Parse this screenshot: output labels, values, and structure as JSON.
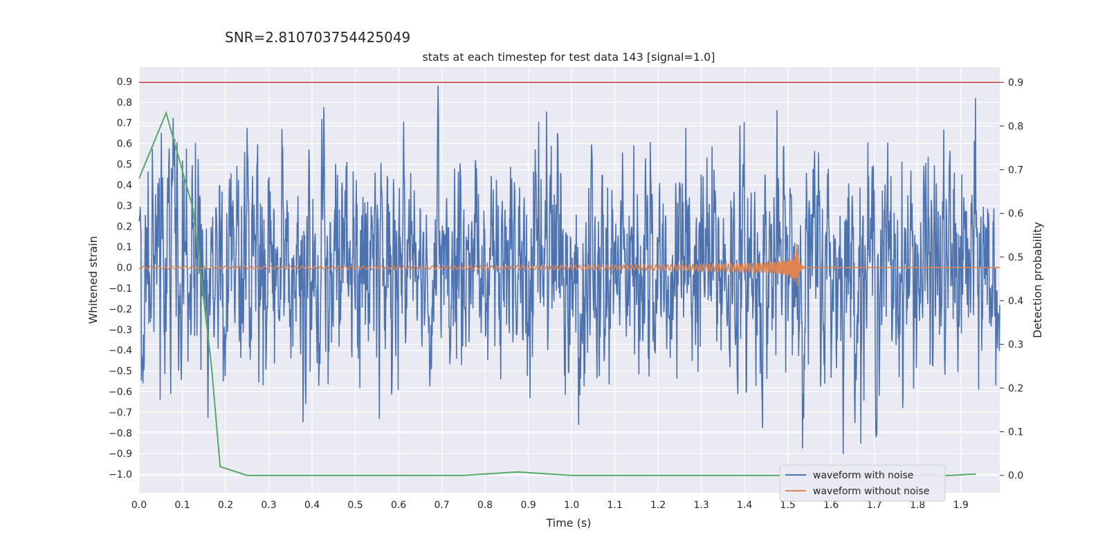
{
  "suptitle": "SNR=2.810703754425049",
  "chart_data": {
    "type": "line",
    "title": "stats at each timestep for test data 143 [signal=1.0]",
    "xlabel": "Time (s)",
    "ylabel": "Whitened strain",
    "y2label": "Detection probability",
    "xlim": [
      0.0,
      1.99
    ],
    "ylim": [
      -1.09,
      0.97
    ],
    "y2lim": [
      -0.04,
      0.935
    ],
    "x_ticks": [
      "0.0",
      "0.1",
      "0.2",
      "0.3",
      "0.4",
      "0.5",
      "0.6",
      "0.7",
      "0.8",
      "0.9",
      "1.0",
      "1.1",
      "1.2",
      "1.3",
      "1.4",
      "1.5",
      "1.6",
      "1.7",
      "1.8",
      "1.9"
    ],
    "y_ticks": [
      "0.9",
      "0.8",
      "0.7",
      "0.6",
      "0.5",
      "0.4",
      "0.3",
      "0.2",
      "0.1",
      "0.0",
      "−0.1",
      "−0.2",
      "−0.3",
      "−0.4",
      "−0.5",
      "−0.6",
      "−0.7",
      "−0.8",
      "−0.9",
      "−1.0"
    ],
    "y2_ticks": [
      "0.9",
      "0.8",
      "0.7",
      "0.6",
      "0.5",
      "0.4",
      "0.3",
      "0.2",
      "0.1",
      "0.0"
    ],
    "grid": true,
    "legend_position": "bottom-right",
    "series": [
      {
        "name": "waveform with noise",
        "color": "#4c72b0",
        "axis": "left",
        "x_range": [
          0.0,
          1.99
        ],
        "min": -1.0,
        "max": 0.88,
        "envelope_std": 0.23
      },
      {
        "name": "waveform without noise",
        "color": "#dd8452",
        "axis": "left",
        "x_range": [
          0.0,
          1.99
        ],
        "merger_time": 1.52,
        "peak_amplitude": 0.14
      },
      {
        "axis": "right",
        "color": "#55a868",
        "x": [
          0.0,
          0.0625,
          0.125,
          0.1675,
          0.1875,
          0.25,
          0.375,
          0.5,
          0.625,
          0.75,
          0.875,
          1.0,
          1.125,
          1.25,
          1.375,
          1.5,
          1.625,
          1.75,
          1.875,
          1.935
        ],
        "y": [
          0.68,
          0.83,
          0.61,
          0.25,
          0.02,
          0.0,
          0.0,
          0.0,
          0.0,
          0.0,
          0.008,
          0.0,
          0.0,
          0.0,
          0.0,
          0.0,
          0.0,
          0.0,
          0.0,
          0.003
        ]
      },
      {
        "axis": "right",
        "color": "#c44e52",
        "type": "hline",
        "y": 0.9
      }
    ]
  }
}
